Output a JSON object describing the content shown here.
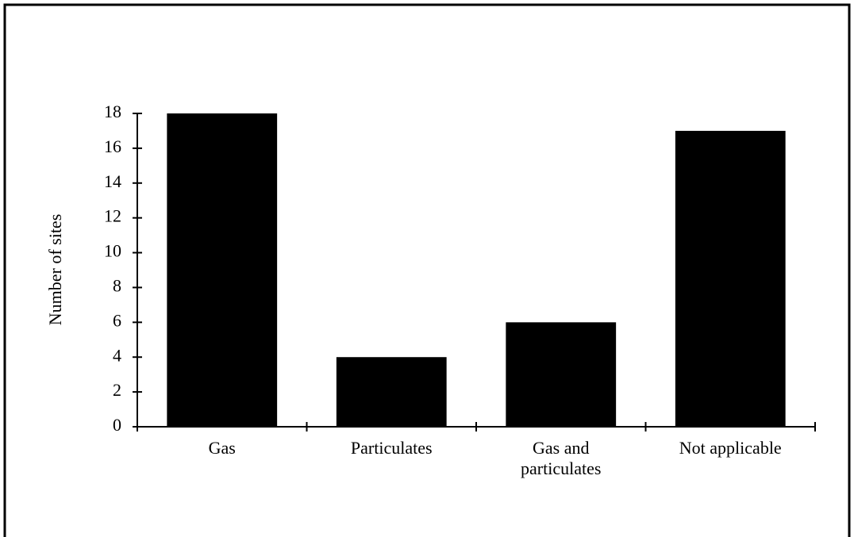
{
  "chart_data": {
    "type": "bar",
    "y_label": "Number of sites",
    "categories": [
      "Gas",
      "Particulates",
      "Gas and particulates",
      "Not applicable"
    ],
    "values": [
      18,
      4,
      6,
      17
    ],
    "color": "#000000",
    "ylim": [
      0,
      18
    ],
    "yticks": [
      0,
      2,
      4,
      6,
      8,
      10,
      12,
      14,
      16,
      18
    ],
    "grid": false
  }
}
